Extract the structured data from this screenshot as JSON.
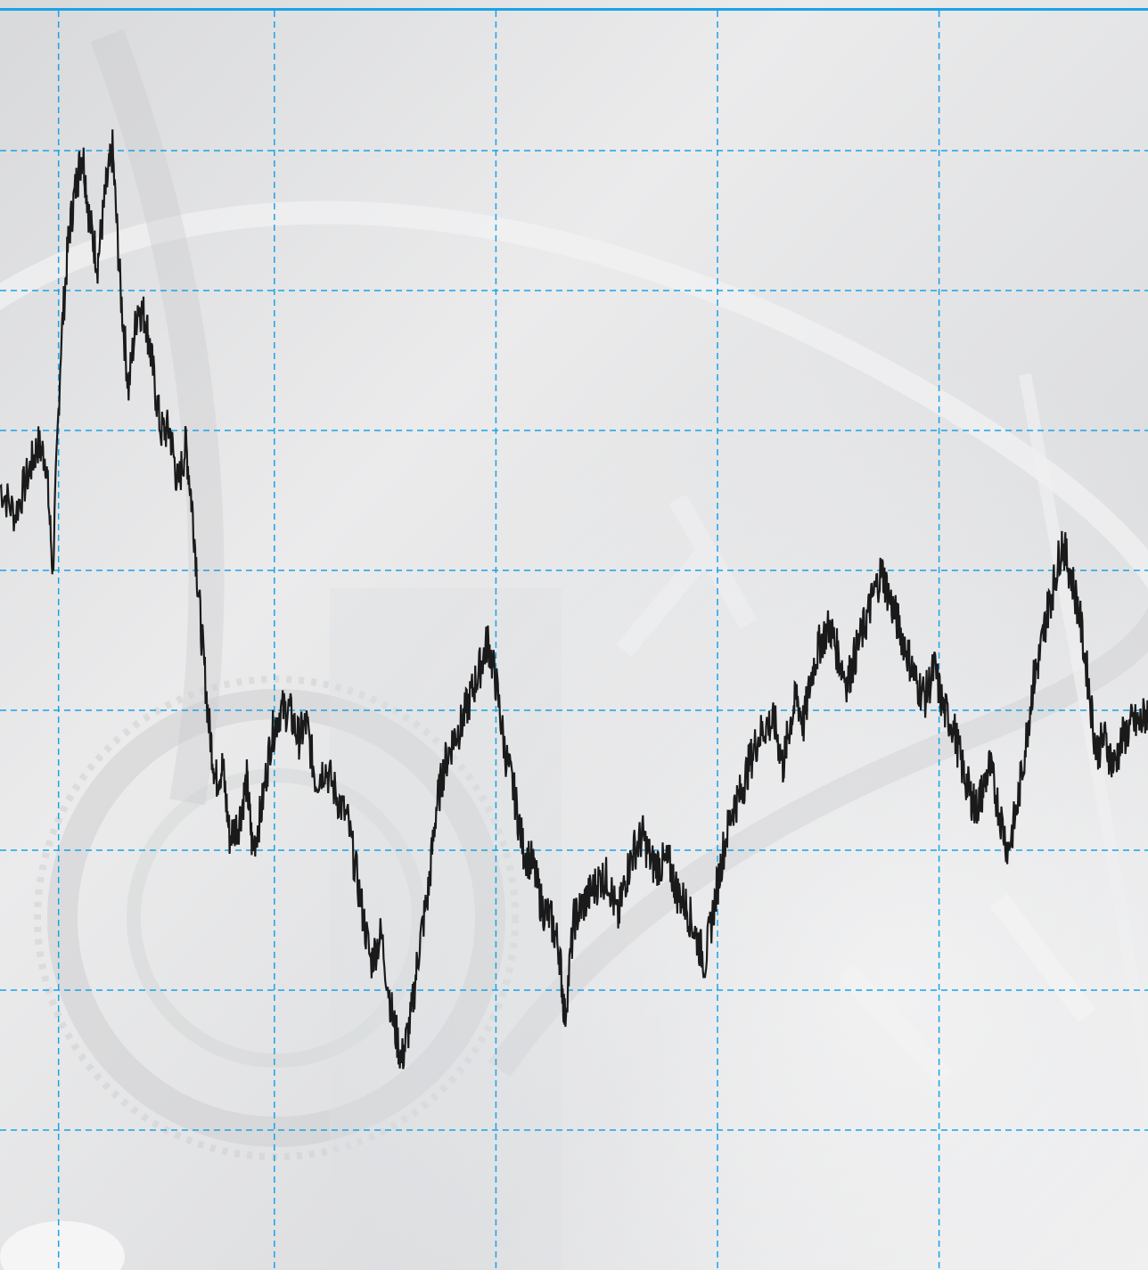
{
  "colors": {
    "grid": "#1aa3e6",
    "top_rule": "#1aa3e6",
    "series": "#1a1a1a",
    "background_light": "#ececed",
    "background_mid": "#d6d7d9",
    "background_dark": "#a9abae"
  },
  "background": {
    "description_icon": "clockwork-gears-watermark-icon"
  },
  "chart_data": {
    "type": "line",
    "title": "",
    "xlabel": "",
    "ylabel": "",
    "xlim": [
      0,
      100
    ],
    "ylim": [
      0,
      9
    ],
    "grid": true,
    "grid_x_values": [
      5.1,
      23.9,
      43.2,
      62.5,
      81.8
    ],
    "grid_y_values": [
      1,
      2,
      3,
      4,
      5,
      6,
      7,
      8
    ],
    "series": [
      {
        "x": [
          0,
          1.3,
          2.5,
          3.3,
          4.0,
          4.6,
          5.3,
          6.0,
          6.7,
          7.2,
          7.8,
          8.5,
          9.2,
          9.8,
          10.5,
          11.2,
          12.0,
          12.7,
          13.2,
          14.0,
          14.8,
          15.5,
          16.2,
          16.8,
          17.5,
          18.2,
          18.8,
          19.4,
          20.0,
          20.8,
          21.5,
          22.0,
          22.8,
          23.6,
          24.4,
          25.2,
          26.0,
          26.7,
          27.5,
          28.3,
          29.3,
          30.3,
          31.3,
          32.3,
          33.2,
          34.2,
          35.0,
          35.8,
          36.5,
          37.3,
          38.0,
          38.7,
          39.5,
          40.2,
          41.0,
          41.8,
          42.5,
          43.2,
          44.0,
          44.8,
          45.6,
          46.4,
          47.2,
          48.0,
          48.7,
          49.2,
          50.0,
          50.7,
          51.5,
          52.3,
          53.0,
          53.8,
          54.5,
          55.2,
          56.0,
          56.8,
          57.5,
          58.3,
          59.0,
          59.8,
          60.6,
          61.4,
          62.2,
          63.0,
          63.8,
          64.5,
          65.2,
          66.0,
          66.8,
          67.5,
          68.2,
          68.8,
          69.4,
          70.0,
          70.8,
          71.5,
          72.3,
          73.0,
          73.8,
          74.5,
          75.3,
          76.0,
          76.8,
          77.5,
          78.3,
          79.1,
          79.8,
          80.6,
          81.4,
          82.2,
          83.0,
          83.8,
          84.5,
          85.0,
          85.5,
          86.2,
          87.0,
          87.8,
          88.6,
          89.4,
          90.0,
          90.6,
          91.2,
          91.8,
          92.5,
          93.2,
          94.0,
          94.8,
          95.5,
          96.2,
          97.0,
          97.8,
          98.6,
          99.3,
          100
        ],
        "values": [
          5.6,
          5.4,
          5.7,
          5.9,
          5.8,
          5.0,
          6.6,
          7.4,
          7.8,
          8.0,
          7.5,
          7.2,
          7.7,
          8.0,
          7.0,
          6.3,
          6.9,
          6.8,
          6.5,
          6.0,
          6.0,
          5.6,
          5.9,
          5.4,
          4.6,
          3.9,
          3.5,
          3.6,
          3.1,
          3.2,
          3.5,
          3.0,
          3.3,
          3.8,
          4.0,
          4.0,
          3.8,
          3.9,
          3.5,
          3.6,
          3.4,
          3.2,
          2.7,
          2.2,
          2.4,
          1.8,
          1.5,
          1.8,
          2.3,
          2.7,
          3.3,
          3.6,
          3.8,
          3.9,
          4.1,
          4.3,
          4.5,
          4.2,
          3.7,
          3.4,
          3.0,
          2.9,
          2.6,
          2.5,
          2.3,
          1.8,
          2.5,
          2.6,
          2.7,
          2.8,
          2.8,
          2.5,
          2.8,
          3.0,
          3.1,
          2.9,
          2.9,
          2.9,
          2.7,
          2.6,
          2.4,
          2.2,
          2.6,
          3.0,
          3.3,
          3.4,
          3.6,
          3.8,
          3.9,
          3.9,
          3.6,
          3.9,
          4.1,
          3.9,
          4.3,
          4.5,
          4.6,
          4.4,
          4.2,
          4.4,
          4.6,
          4.8,
          5.0,
          4.8,
          4.6,
          4.4,
          4.2,
          4.1,
          4.3,
          4.0,
          3.9,
          3.6,
          3.4,
          3.3,
          3.4,
          3.6,
          3.3,
          3.0,
          3.3,
          3.8,
          4.2,
          4.4,
          4.7,
          4.9,
          5.2,
          5.0,
          4.7,
          4.2,
          3.7,
          3.8,
          3.6,
          3.8,
          3.9,
          3.9,
          4.0
        ],
        "color": "#1a1a1a"
      }
    ]
  }
}
